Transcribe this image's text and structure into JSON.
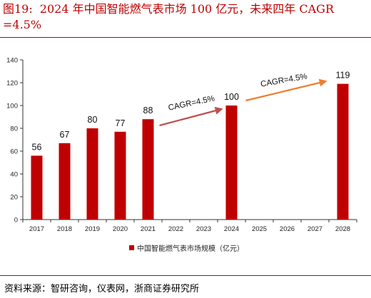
{
  "title": {
    "figure_number": "图19:",
    "text": "2024 年中国智能燃气表市场 100 亿元，未来四年 CAGR =4.5%"
  },
  "chart_data": {
    "type": "bar",
    "categories": [
      "2017",
      "2018",
      "2019",
      "2020",
      "2021",
      "2022",
      "2023",
      "2024",
      "2025",
      "2026",
      "2027",
      "2028"
    ],
    "series": [
      {
        "name": "中国智能燃气表市场规模（亿元）",
        "values": [
          56,
          67,
          80,
          77,
          88,
          null,
          null,
          100,
          null,
          null,
          null,
          119
        ]
      }
    ],
    "data_labels": [
      "56",
      "67",
      "80",
      "77",
      "88",
      "",
      "",
      "100",
      "",
      "",
      "",
      "119"
    ],
    "ylim": [
      0,
      140
    ],
    "yticks": [
      0,
      20,
      40,
      60,
      80,
      100,
      120,
      140
    ],
    "grid": false,
    "legend_position": "bottom",
    "bar_color": "#c00000",
    "annotations": [
      {
        "text": "CAGR=4.5%",
        "color": "#c0504d",
        "from_category": "2021",
        "to_category": "2024"
      },
      {
        "text": "CAGR=4.5%",
        "color": "#ed7d31",
        "from_category": "2024",
        "to_category": "2028"
      }
    ]
  },
  "source": "资料来源：智研咨询，仪表网，浙商证券研究所"
}
